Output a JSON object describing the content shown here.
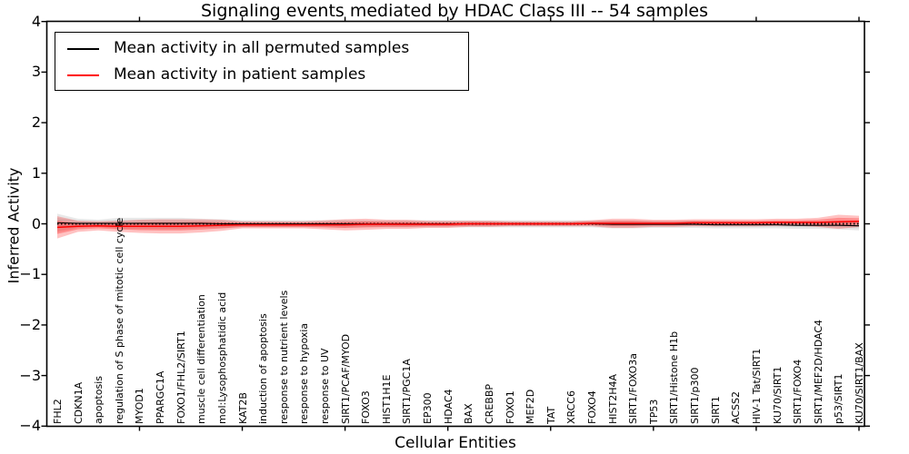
{
  "title": "Signaling events mediated by HDAC Class III -- 54 samples",
  "legend": {
    "items": [
      {
        "label": "Mean activity in all permuted samples",
        "color": "#000000"
      },
      {
        "label": "Mean activity in patient samples",
        "color": "#ff0000"
      }
    ]
  },
  "axes": {
    "ylabel": "Inferred Activity",
    "xlabel": "Cellular Entities",
    "ytick_labels": [
      "4",
      "3",
      "2",
      "1",
      "0",
      "−1",
      "−2",
      "−3",
      "−4"
    ],
    "ytick_values": [
      4,
      3,
      2,
      1,
      0,
      -1,
      -2,
      -3,
      -4
    ]
  },
  "chart_data": {
    "type": "line",
    "title": "Signaling events mediated by HDAC Class III -- 54 samples",
    "xlabel": "Cellular Entities",
    "ylabel": "Inferred Activity",
    "ylim": [
      -4,
      4
    ],
    "grid": false,
    "legend_position": "upper left",
    "categories": [
      "FHL2",
      "CDKN1A",
      "apoptosis",
      "regulation of S phase of mitotic cell cycle",
      "MYOD1",
      "PPARGC1A",
      "FOXO1/FHL2/SIRT1",
      "muscle cell differentiation",
      "mol:Lysophosphatidic acid",
      "KAT2B",
      "induction of apoptosis",
      "response to nutrient levels",
      "response to hypoxia",
      "response to UV",
      "SIRT1/PCAF/MYOD",
      "FOXO3",
      "HIST1H1E",
      "SIRT1/PGC1A",
      "EP300",
      "HDAC4",
      "BAX",
      "CREBBP",
      "FOXO1",
      "MEF2D",
      "TAT",
      "XRCC6",
      "FOXO4",
      "HIST2H4A",
      "SIRT1/FOXO3a",
      "TP53",
      "SIRT1/Histone H1b",
      "SIRT1/p300",
      "SIRT1",
      "ACSS2",
      "HIV-1 Tat/SIRT1",
      "KU70/SIRT1",
      "SIRT1/FOXO4",
      "SIRT1/MEF2D/HDAC4",
      "p53/SIRT1",
      "KU70/SIRT1/BAX"
    ],
    "series": [
      {
        "name": "Mean activity in all permuted samples",
        "color": "#000000",
        "values": [
          0.02,
          0.01,
          0.01,
          0.01,
          0.01,
          0.01,
          0.01,
          0.01,
          0.0,
          0.0,
          0.0,
          0.0,
          0.0,
          0.0,
          0.0,
          0.0,
          0.0,
          0.0,
          0.0,
          0.0,
          0.0,
          0.0,
          0.0,
          0.0,
          0.0,
          0.0,
          0.0,
          -0.01,
          -0.01,
          -0.01,
          -0.01,
          -0.01,
          -0.02,
          -0.02,
          -0.02,
          -0.02,
          -0.03,
          -0.03,
          -0.03,
          -0.04
        ]
      },
      {
        "name": "Mean activity in patient samples",
        "color": "#ff0000",
        "values": [
          -0.07,
          -0.05,
          -0.04,
          -0.05,
          -0.05,
          -0.05,
          -0.05,
          -0.04,
          -0.03,
          -0.02,
          -0.02,
          -0.02,
          -0.02,
          -0.02,
          -0.02,
          -0.01,
          -0.01,
          -0.01,
          -0.01,
          -0.01,
          0.0,
          0.0,
          0.0,
          0.0,
          0.0,
          0.0,
          0.01,
          0.01,
          0.01,
          0.01,
          0.01,
          0.02,
          0.02,
          0.02,
          0.02,
          0.03,
          0.03,
          0.03,
          0.04,
          0.05
        ]
      }
    ],
    "zero_reference_line": {
      "style": "dotted",
      "color": "#000000",
      "value": 0.0
    },
    "bands": [
      {
        "name": "permuted samples spread",
        "series": 0,
        "color": "rgba(80,80,80,0.13)",
        "half_widths": [
          0.18,
          0.09,
          0.07,
          0.11,
          0.11,
          0.11,
          0.11,
          0.09,
          0.09,
          0.07,
          0.07,
          0.07,
          0.07,
          0.07,
          0.08,
          0.07,
          0.07,
          0.07,
          0.07,
          0.07,
          0.07,
          0.07,
          0.07,
          0.07,
          0.07,
          0.07,
          0.07,
          0.08,
          0.08,
          0.07,
          0.07,
          0.07,
          0.07,
          0.07,
          0.07,
          0.07,
          0.07,
          0.07,
          0.08,
          0.09
        ]
      },
      {
        "name": "permuted samples spread inner",
        "series": 0,
        "color": "rgba(80,80,80,0.10)",
        "half_widths": [
          0.1,
          0.05,
          0.04,
          0.06,
          0.06,
          0.06,
          0.06,
          0.05,
          0.05,
          0.04,
          0.04,
          0.04,
          0.04,
          0.04,
          0.045,
          0.04,
          0.04,
          0.04,
          0.04,
          0.04,
          0.04,
          0.04,
          0.04,
          0.04,
          0.04,
          0.04,
          0.04,
          0.045,
          0.045,
          0.04,
          0.04,
          0.04,
          0.04,
          0.04,
          0.04,
          0.04,
          0.04,
          0.04,
          0.045,
          0.05
        ]
      },
      {
        "name": "patient samples spread",
        "series": 1,
        "color": "rgba(255,0,0,0.24)",
        "half_widths": [
          0.22,
          0.11,
          0.09,
          0.11,
          0.13,
          0.14,
          0.14,
          0.13,
          0.11,
          0.07,
          0.07,
          0.07,
          0.07,
          0.09,
          0.11,
          0.11,
          0.09,
          0.09,
          0.07,
          0.07,
          0.06,
          0.06,
          0.05,
          0.05,
          0.05,
          0.05,
          0.06,
          0.09,
          0.09,
          0.07,
          0.07,
          0.07,
          0.07,
          0.07,
          0.07,
          0.07,
          0.07,
          0.09,
          0.14,
          0.11
        ]
      },
      {
        "name": "patient samples spread inner",
        "series": 1,
        "color": "rgba(255,0,0,0.28)",
        "half_widths": [
          0.13,
          0.06,
          0.05,
          0.06,
          0.075,
          0.08,
          0.08,
          0.075,
          0.06,
          0.04,
          0.04,
          0.04,
          0.04,
          0.05,
          0.06,
          0.06,
          0.05,
          0.05,
          0.04,
          0.04,
          0.035,
          0.035,
          0.03,
          0.03,
          0.03,
          0.03,
          0.035,
          0.05,
          0.05,
          0.04,
          0.04,
          0.04,
          0.04,
          0.04,
          0.04,
          0.04,
          0.04,
          0.05,
          0.08,
          0.06
        ]
      }
    ],
    "x_major_tick_indices": [
      4,
      9,
      14,
      19,
      24,
      29,
      34,
      39
    ]
  }
}
